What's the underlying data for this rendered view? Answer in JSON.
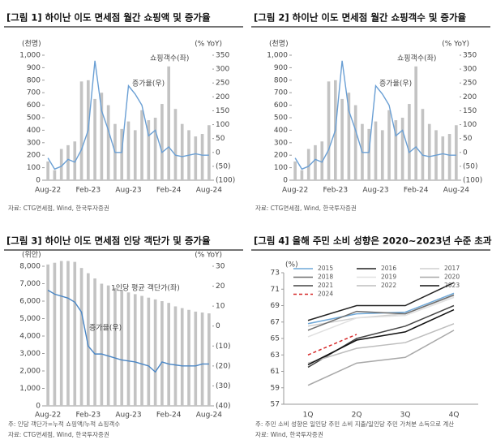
{
  "chart_data": [
    {
      "type": "bar_line",
      "title": "[그림 1] 하이난 이도 면세점 월간 쇼핑액 및 증가율",
      "y_label": "(천명)",
      "y2_label": "(% YoY)",
      "categories": [
        "Aug-22",
        null,
        null,
        null,
        null,
        null,
        "Feb-23",
        null,
        null,
        null,
        null,
        null,
        "Aug-23",
        null,
        null,
        null,
        null,
        null,
        "Feb-24",
        null,
        null,
        null,
        null,
        null,
        "Aug-24"
      ],
      "series": [
        {
          "name": "쇼핑객수(좌)",
          "type": "bar",
          "color": "#c3c3c3",
          "values": [
            150,
            80,
            250,
            280,
            310,
            790,
            800,
            650,
            700,
            600,
            450,
            410,
            470,
            400,
            560,
            480,
            500,
            610,
            910,
            570,
            450,
            400,
            350,
            370,
            440
          ]
        },
        {
          "name": "증가율(우)",
          "type": "line",
          "axis": "y2",
          "color": "#6a9fd4",
          "values": [
            -20,
            -60,
            -50,
            -25,
            -35,
            10,
            80,
            330,
            150,
            80,
            0,
            0,
            240,
            210,
            170,
            60,
            80,
            0,
            20,
            -10,
            -15,
            -10,
            -5,
            -10,
            -10
          ]
        }
      ],
      "ylim": [
        0,
        1000
      ],
      "yticks": [
        0,
        100,
        200,
        300,
        400,
        500,
        600,
        700,
        800,
        900,
        {
          "value": 1000,
          "label": "1,000"
        }
      ],
      "y2lim": [
        -100,
        350
      ],
      "y2ticks": [
        {
          "value": -100,
          "label": "(100)"
        },
        {
          "value": -50,
          "label": "(50)"
        },
        0,
        50,
        100,
        150,
        200,
        250,
        300,
        350
      ],
      "source": "자료: CTG면세점, Wind, 한국투자증권"
    },
    {
      "type": "bar_line",
      "title": "[그림 2] 하이난 이도 면세점 월간 쇼핑객수 및 증가율",
      "y_label": "(천명)",
      "y2_label": "(% YoY)",
      "categories": [
        "Aug-22",
        null,
        null,
        null,
        null,
        null,
        "Feb-23",
        null,
        null,
        null,
        null,
        null,
        "Aug-23",
        null,
        null,
        null,
        null,
        null,
        "Feb-24",
        null,
        null,
        null,
        null,
        null,
        "Aug-24"
      ],
      "series": [
        {
          "name": "쇼핑객수(좌)",
          "type": "bar",
          "color": "#c3c3c3",
          "values": [
            150,
            80,
            250,
            280,
            310,
            790,
            800,
            650,
            700,
            600,
            450,
            410,
            470,
            400,
            560,
            480,
            500,
            610,
            910,
            570,
            450,
            400,
            350,
            370,
            440
          ]
        },
        {
          "name": "증가율(우)",
          "type": "line",
          "axis": "y2",
          "color": "#6a9fd4",
          "values": [
            -20,
            -60,
            -50,
            -25,
            -35,
            10,
            80,
            330,
            150,
            80,
            0,
            0,
            240,
            210,
            170,
            60,
            80,
            0,
            20,
            -10,
            -15,
            -10,
            -5,
            -10,
            -10
          ]
        }
      ],
      "ylim": [
        0,
        1000
      ],
      "yticks": [
        0,
        100,
        200,
        300,
        400,
        500,
        600,
        700,
        800,
        900,
        {
          "value": 1000,
          "label": "1,000"
        }
      ],
      "y2lim": [
        -100,
        350
      ],
      "y2ticks": [
        {
          "value": -100,
          "label": "(100)"
        },
        {
          "value": -50,
          "label": "(50)"
        },
        0,
        50,
        100,
        150,
        200,
        250,
        300,
        350
      ],
      "source": "자료: CTG면세점, Wind, 한국투자증권"
    },
    {
      "type": "bar_line",
      "title": "[그림 3] 하이난 이도 면세점 인당 객단가 및 증가율",
      "y_label": "(위안)",
      "y2_label": "(% YoY)",
      "categories": [
        "Aug-22",
        null,
        null,
        null,
        null,
        null,
        "Feb-23",
        null,
        null,
        null,
        null,
        null,
        "Aug-23",
        null,
        null,
        null,
        null,
        null,
        "Feb-24",
        null,
        null,
        null,
        null,
        null,
        "Aug-24"
      ],
      "series": [
        {
          "name": "1인당 평균 객단가(좌)",
          "type": "bar",
          "color": "#c3c3c3",
          "values": [
            8100,
            8200,
            8300,
            8300,
            8250,
            7900,
            7600,
            7300,
            7000,
            6900,
            6750,
            6650,
            6500,
            6400,
            6300,
            6200,
            6100,
            6000,
            5900,
            5700,
            5600,
            5500,
            5400,
            5350,
            5300
          ]
        },
        {
          "name": "증가율(우)",
          "type": "line",
          "axis": "y2",
          "color": "#4a86c5",
          "values": [
            18,
            16,
            15,
            14,
            12,
            7,
            -10,
            -14,
            -14,
            -15,
            -16,
            -17,
            -17.5,
            -18,
            -19,
            -20,
            -23,
            -18,
            -19,
            -19.5,
            -20,
            -20,
            -20,
            -19,
            -19
          ]
        }
      ],
      "ylim": [
        0,
        8000
      ],
      "yticks": [
        0,
        {
          "value": 1000,
          "label": "1,000"
        },
        {
          "value": 2000,
          "label": "2,000"
        },
        {
          "value": 3000,
          "label": "3,000"
        },
        {
          "value": 4000,
          "label": "4,000"
        },
        {
          "value": 5000,
          "label": "5,000"
        },
        {
          "value": 6000,
          "label": "6,000"
        },
        {
          "value": 7000,
          "label": "7,000"
        },
        {
          "value": 8000,
          "label": "8,000"
        }
      ],
      "y2lim": [
        -40,
        30
      ],
      "y2ticks": [
        {
          "value": -40,
          "label": "(40)"
        },
        {
          "value": -30,
          "label": "(30)"
        },
        {
          "value": -20,
          "label": "(20)"
        },
        {
          "value": -10,
          "label": "(10)"
        },
        0,
        10,
        20,
        30
      ],
      "note": "주: 인당 객단가=누적 쇼핑액/누적 쇼핑객수",
      "source": "자료: CTG면세점, Wind, 한국투자증권"
    },
    {
      "type": "line",
      "title": "[그림 4] 올해 주민 소비 성향은 2020~2023년 수준 초과",
      "y_label": "(%)",
      "categories": [
        "1Q",
        "2Q",
        "3Q",
        "4Q"
      ],
      "series": [
        {
          "name": "2015",
          "color": "#6fa8d8",
          "values": [
            66.8,
            68.0,
            68.2,
            70.5
          ]
        },
        {
          "name": "2016",
          "color": "#222222",
          "values": [
            67.2,
            69.0,
            69.0,
            71.8
          ]
        },
        {
          "name": "2017",
          "color": "#cfcfcf",
          "values": [
            66.5,
            67.5,
            68.0,
            70.2
          ]
        },
        {
          "name": "2018",
          "color": "#6e6e6e",
          "values": [
            66.0,
            68.3,
            68.0,
            70.3
          ]
        },
        {
          "name": "2019",
          "color": "#e0e0e0",
          "values": [
            65.2,
            67.5,
            67.8,
            70.0
          ]
        },
        {
          "name": "2020",
          "color": "#a8a8a8",
          "values": [
            59.3,
            62.0,
            62.7,
            66.0
          ]
        },
        {
          "name": "2021",
          "color": "#444444",
          "values": [
            61.5,
            65.0,
            66.5,
            69.0
          ]
        },
        {
          "name": "2022",
          "color": "#bdbdbd",
          "values": [
            62.0,
            63.8,
            64.5,
            66.8
          ]
        },
        {
          "name": "2023",
          "color": "#111111",
          "values": [
            61.8,
            64.8,
            65.8,
            68.5
          ]
        },
        {
          "name": "2024",
          "color": "#d62828",
          "dashed": true,
          "values": [
            63.0,
            65.5,
            null,
            null
          ]
        }
      ],
      "ylim": [
        57,
        73
      ],
      "yticks": [
        57,
        59,
        61,
        63,
        65,
        67,
        69,
        71,
        73
      ],
      "note": "주: 주민 소비 성향은 일인당 주민 소비 지출/일인당 주민 가처분 소득으로 계산",
      "source": "자료: Wind, 한국투자증권"
    }
  ]
}
